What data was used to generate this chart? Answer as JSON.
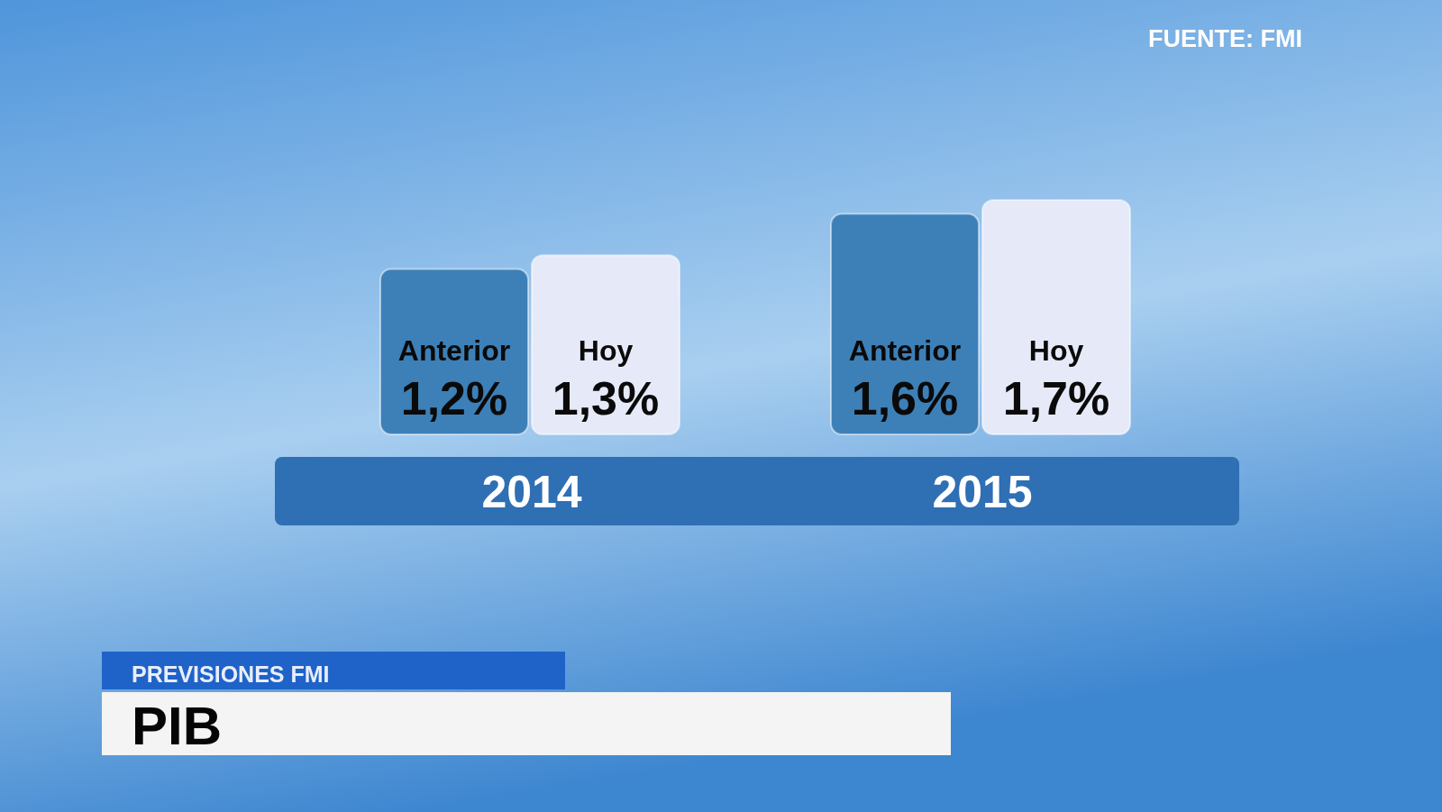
{
  "chart_data": {
    "type": "bar",
    "title": "PIB",
    "subtitle": "PREVISIONES FMI",
    "annotations": [
      "FUENTE: FMI"
    ],
    "categories": [
      "2014",
      "2015"
    ],
    "series": [
      {
        "name": "Anterior",
        "color": "#3d80b8",
        "values": [
          1.2,
          1.6
        ],
        "value_labels": [
          "1,2%",
          "1,6%"
        ]
      },
      {
        "name": "Hoy",
        "color": "#e6eaf8",
        "values": [
          1.3,
          1.7
        ],
        "value_labels": [
          "1,3%",
          "1,7%"
        ]
      }
    ]
  }
}
